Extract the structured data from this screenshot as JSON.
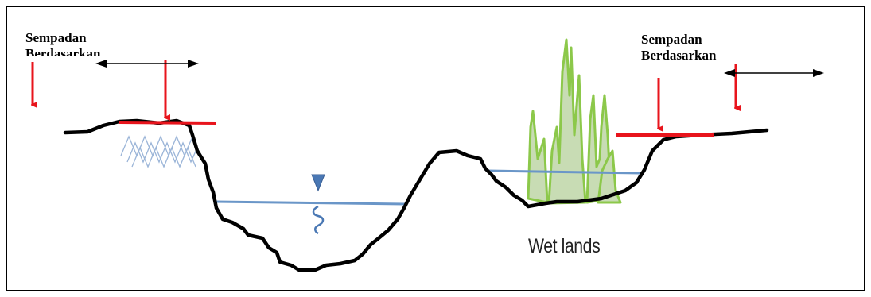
{
  "labels": {
    "left_line1": "Sempadan",
    "left_line2": "Berdasarkan",
    "right_line1": "Sempadan",
    "right_line2": "Berdasarkan",
    "wetlands": "Wet lands"
  },
  "colors": {
    "ground": "#000000",
    "arrow_red": "#e8141c",
    "water": "#6a96c8",
    "vegetation": "#8cc84a",
    "vegetation_fill": "#c8dcb4",
    "hatch": "#9bb5d8"
  },
  "icons": {
    "water_level": "water-level-triangle-icon",
    "spring": "water-wave-icon"
  }
}
